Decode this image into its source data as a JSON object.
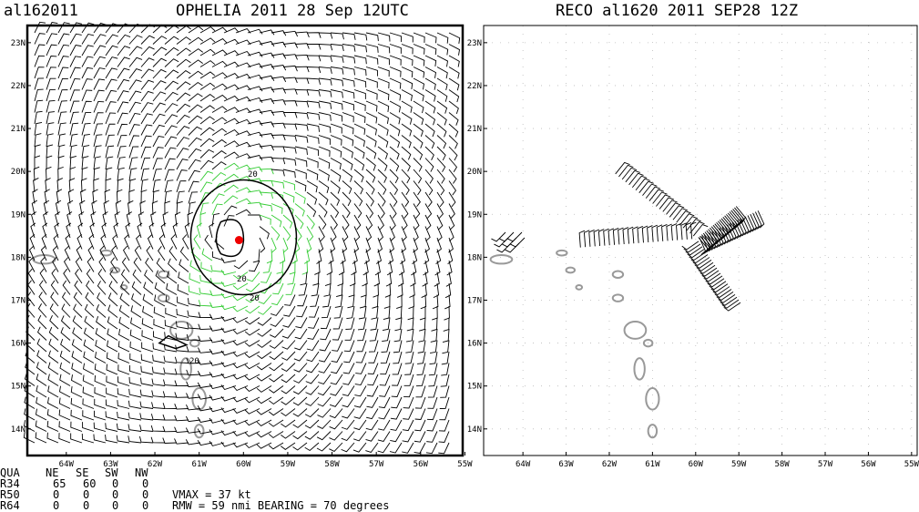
{
  "header": {
    "storm_id": "al162011",
    "left_title": "OPHELIA 2011 28 Sep 12UTC",
    "right_title": "RECO al1620 2011 SEP28 12Z"
  },
  "panels": [
    {
      "xlim": [
        -64.88,
        -55.05
      ],
      "ylim": [
        13.38,
        23.4
      ],
      "xticks": [
        {
          "value": -64,
          "label": "64W"
        },
        {
          "value": -63,
          "label": "63W"
        },
        {
          "value": -62,
          "label": "62W"
        },
        {
          "value": -61,
          "label": "61W"
        },
        {
          "value": -60,
          "label": "60W"
        },
        {
          "value": -59,
          "label": "59W"
        },
        {
          "value": -58,
          "label": "58W"
        },
        {
          "value": -57,
          "label": "57W"
        },
        {
          "value": -56,
          "label": "56W"
        },
        {
          "value": -55,
          "label": "55W"
        }
      ],
      "yticks": [
        {
          "value": 23,
          "label": "23N"
        },
        {
          "value": 22,
          "label": "22N"
        },
        {
          "value": 21,
          "label": "21N"
        },
        {
          "value": 20,
          "label": "20N"
        },
        {
          "value": 19,
          "label": "19N"
        },
        {
          "value": 18,
          "label": "18N"
        },
        {
          "value": 17,
          "label": "17N"
        },
        {
          "value": 16,
          "label": "16N"
        },
        {
          "value": 15,
          "label": "15N"
        },
        {
          "value": 14,
          "label": "14N"
        }
      ],
      "contour_labels": [
        "20",
        "20",
        "20",
        "20"
      ]
    },
    {
      "xlim": [
        -64.91,
        -54.87
      ],
      "ylim": [
        13.38,
        23.4
      ],
      "xticks": [
        {
          "value": -64,
          "label": "64W"
        },
        {
          "value": -63,
          "label": "63W"
        },
        {
          "value": -62,
          "label": "62W"
        },
        {
          "value": -61,
          "label": "61W"
        },
        {
          "value": -60,
          "label": "60W"
        },
        {
          "value": -59,
          "label": "59W"
        },
        {
          "value": -58,
          "label": "58W"
        },
        {
          "value": -57,
          "label": "57W"
        },
        {
          "value": -56,
          "label": "56W"
        },
        {
          "value": -55,
          "label": "55W"
        }
      ],
      "yticks": [
        {
          "value": 23,
          "label": "23N"
        },
        {
          "value": 22,
          "label": "22N"
        },
        {
          "value": 21,
          "label": "21N"
        },
        {
          "value": 20,
          "label": "20N"
        },
        {
          "value": 19,
          "label": "19N"
        },
        {
          "value": 18,
          "label": "18N"
        },
        {
          "value": 17,
          "label": "17N"
        },
        {
          "value": 16,
          "label": "16N"
        },
        {
          "value": 15,
          "label": "15N"
        },
        {
          "value": 14,
          "label": "14N"
        }
      ]
    }
  ],
  "table": {
    "rows": [
      [
        "QUA",
        "NE",
        "SE",
        "SW",
        "NW"
      ],
      [
        "R34",
        "65",
        "60",
        "0",
        "0"
      ],
      [
        "R50",
        "0",
        "0",
        "0",
        "0"
      ],
      [
        "R64",
        "0",
        "0",
        "0",
        "0"
      ]
    ],
    "vmax": "VMAX =   37 kt",
    "rmw": "RMW  =  59 nmi BEARING =   70 degrees"
  }
}
